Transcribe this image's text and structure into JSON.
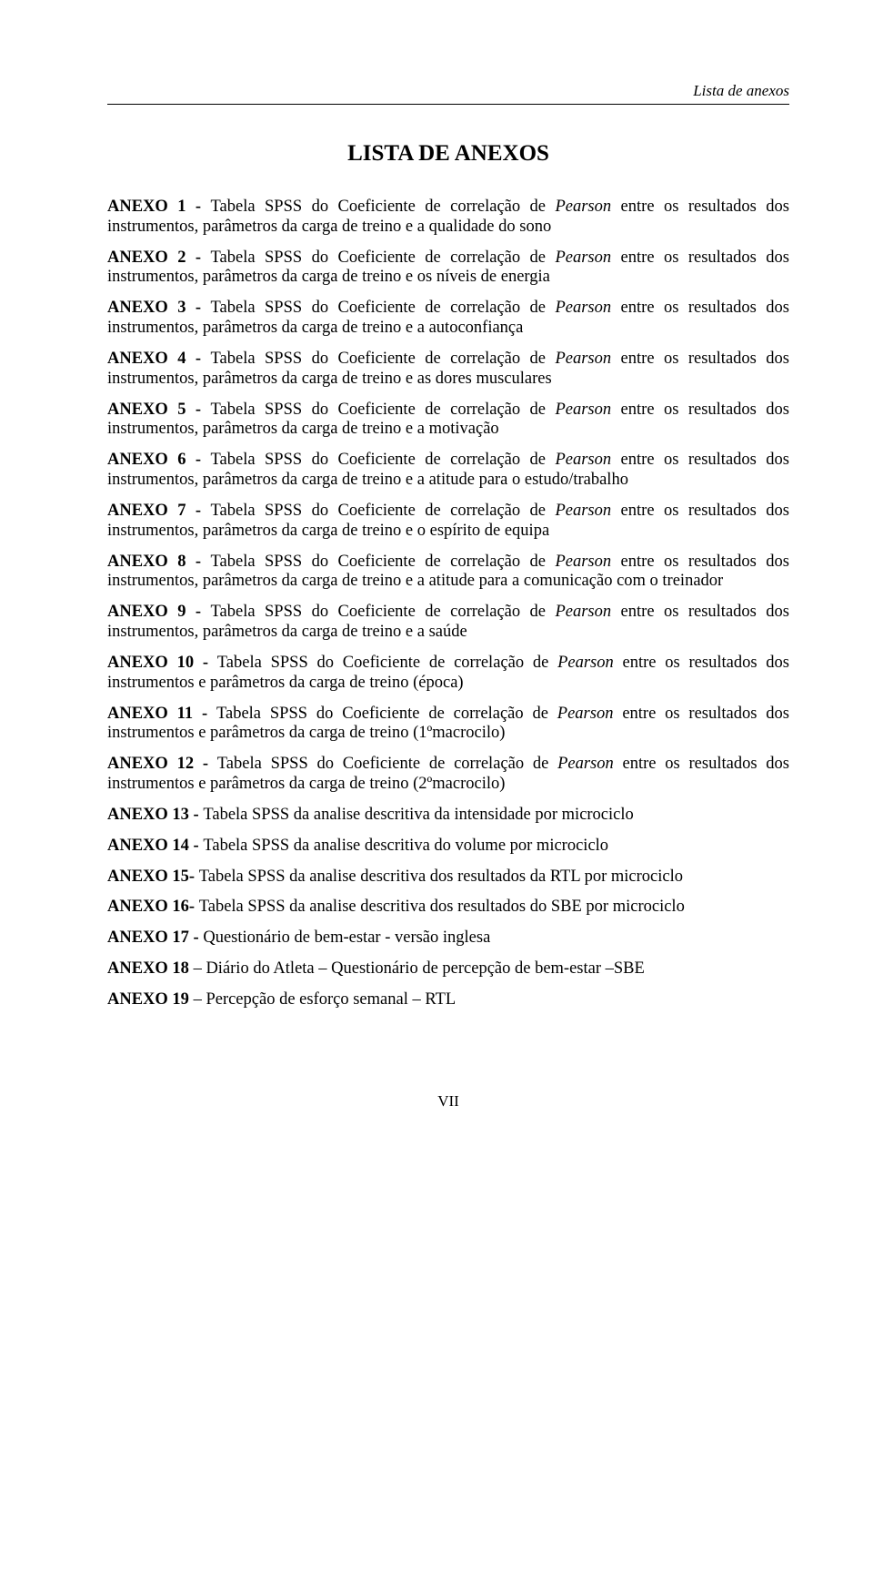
{
  "page": {
    "running_head": "Lista de anexos",
    "title": "LISTA DE ANEXOS",
    "page_number": "VII",
    "colors": {
      "text": "#000000",
      "background": "#ffffff",
      "rule": "#000000"
    },
    "typography": {
      "family": "Times New Roman",
      "title_size_pt": 19,
      "body_size_pt": 14,
      "running_head_size_pt": 13,
      "title_weight": "bold"
    }
  },
  "entries": [
    {
      "lead": "ANEXO 1 - ",
      "pre": "Tabela SPSS do Coeficiente de correlação de ",
      "it": "Pearson",
      "post": " entre os resultados dos instrumentos, parâmetros da carga de treino e a qualidade do sono"
    },
    {
      "lead": "ANEXO 2 - ",
      "pre": "Tabela SPSS do Coeficiente de correlação de ",
      "it": "Pearson",
      "post": " entre os resultados dos instrumentos, parâmetros da carga de treino e os níveis de energia"
    },
    {
      "lead": "ANEXO 3 - ",
      "pre": "Tabela SPSS do Coeficiente de correlação de ",
      "it": "Pearson",
      "post": " entre os resultados dos instrumentos, parâmetros da carga de treino e a autoconfiança"
    },
    {
      "lead": "ANEXO 4 - ",
      "pre": "Tabela SPSS do Coeficiente de correlação de ",
      "it": "Pearson",
      "post": " entre os resultados dos instrumentos, parâmetros da carga de treino e as dores musculares"
    },
    {
      "lead": "ANEXO 5 - ",
      "pre": "Tabela SPSS do Coeficiente de correlação de ",
      "it": "Pearson",
      "post": " entre os resultados dos instrumentos, parâmetros da carga de treino e a motivação"
    },
    {
      "lead": "ANEXO 6 - ",
      "pre": "Tabela SPSS do Coeficiente de correlação de ",
      "it": "Pearson",
      "post": " entre os resultados dos instrumentos, parâmetros da carga de treino e a atitude para o estudo/trabalho"
    },
    {
      "lead": "ANEXO 7 - ",
      "pre": "Tabela SPSS do Coeficiente de correlação de ",
      "it": "Pearson",
      "post": " entre os resultados dos instrumentos, parâmetros da carga de treino e o espírito de equipa"
    },
    {
      "lead": "ANEXO 8 - ",
      "pre": "Tabela SPSS do Coeficiente de correlação de ",
      "it": "Pearson",
      "post": " entre os resultados dos instrumentos, parâmetros da carga de treino e a atitude para a comunicação com o treinador"
    },
    {
      "lead": "ANEXO 9 - ",
      "pre": "Tabela SPSS do Coeficiente de correlação de ",
      "it": "Pearson",
      "post": " entre os resultados dos instrumentos, parâmetros da carga de treino e a saúde"
    },
    {
      "lead": "ANEXO 10 - ",
      "pre": "Tabela SPSS do Coeficiente de correlação de ",
      "it": "Pearson",
      "post": " entre os resultados dos instrumentos e parâmetros da carga de treino (época)"
    },
    {
      "lead": "ANEXO 11 - ",
      "pre": "Tabela SPSS do Coeficiente de correlação de ",
      "it": "Pearson",
      "post": " entre os resultados dos instrumentos e parâmetros da carga de treino (1ºmacrocilo)"
    },
    {
      "lead": "ANEXO 12 - ",
      "pre": "Tabela SPSS do Coeficiente de correlação de ",
      "it": "Pearson",
      "post": " entre os resultados dos instrumentos e parâmetros da carga de treino (2ºmacrocilo)"
    },
    {
      "lead": "ANEXO 13 - ",
      "pre": "Tabela SPSS da analise descritiva da intensidade por microciclo",
      "it": "",
      "post": ""
    },
    {
      "lead": "ANEXO 14 - ",
      "pre": "Tabela SPSS da analise descritiva  do volume por microciclo",
      "it": "",
      "post": ""
    },
    {
      "lead": "ANEXO 15- ",
      "pre": "Tabela SPSS da analise descritiva  dos resultados da RTL por microciclo",
      "it": "",
      "post": ""
    },
    {
      "lead": "ANEXO 16- ",
      "pre": "Tabela SPSS da analise descritiva  dos resultados do SBE por microciclo",
      "it": "",
      "post": ""
    },
    {
      "lead": "ANEXO 17 - ",
      "pre": "Questionário de bem-estar - versão inglesa",
      "it": "",
      "post": ""
    },
    {
      "lead": "ANEXO 18 ",
      "pre": "– Diário do Atleta – Questionário de percepção de bem-estar –SBE",
      "it": "",
      "post": ""
    },
    {
      "lead": "ANEXO 19 ",
      "pre": "– Percepção de esforço semanal –  RTL",
      "it": "",
      "post": ""
    }
  ]
}
